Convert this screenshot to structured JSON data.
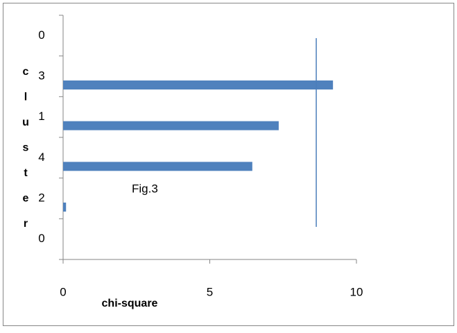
{
  "chart_data": {
    "type": "hbar",
    "annotation": "Fig.3",
    "ylabel": "cluster",
    "xlabel": "chi-square",
    "categories": [
      "0",
      "3",
      "1",
      "4",
      "2",
      "0"
    ],
    "values": [
      null,
      9.2,
      7.35,
      6.45,
      0.1,
      null
    ],
    "color": "#4f81bd",
    "xlim": [
      0,
      10
    ],
    "xticks": [
      0,
      5,
      10
    ],
    "reference_line": {
      "x": 8.63,
      "color": "#4a7ebb"
    }
  }
}
